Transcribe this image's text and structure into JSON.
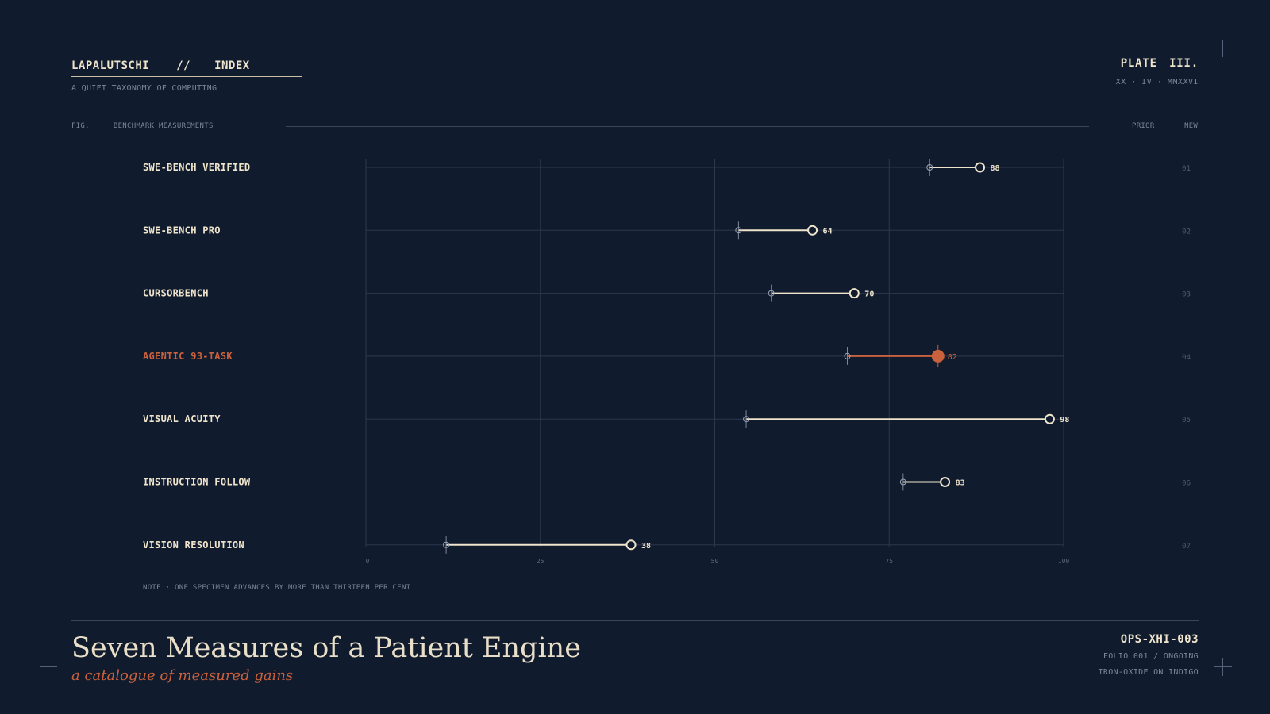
{
  "header": {
    "brand": "LAPALUTSCHI",
    "separator": "//",
    "section": "INDEX",
    "tagline": "A QUIET TAXONOMY OF COMPUTING",
    "plate": "PLATE III.",
    "date": "XX · IV · MMXXVI"
  },
  "figure": {
    "fig_label": "FIG.",
    "caption": "BENCHMARK MEASUREMENTS",
    "prior_label": "PRIOR",
    "new_label": "NEW",
    "note": "NOTE · ONE SPECIMEN ADVANCES BY MORE THAN THIRTEEN PER CENT"
  },
  "footer": {
    "title": "Seven Measures of a Patient Engine",
    "subtitle": "a catalogue of measured gains",
    "code": "OPS-XHI-003",
    "folio": "FOLIO 001 / ONGOING",
    "medium": "IRON-OXIDE ON INDIGO"
  },
  "colors": {
    "background": "#111b2e",
    "text": "#efe4cc",
    "accent": "#c9613c",
    "grid": "#2c384d"
  },
  "chart_data": {
    "type": "dumbbell",
    "xlim": [
      0,
      100
    ],
    "ticks": [
      "0",
      "25",
      "50",
      "75",
      "100"
    ],
    "categories": [
      "SWE-BENCH VERIFIED",
      "SWE-BENCH PRO",
      "CURSORBENCH",
      "AGENTIC 93-TASK",
      "VISUAL ACUITY",
      "INSTRUCTION FOLLOW",
      "VISION RESOLUTION"
    ],
    "indices": [
      "01",
      "02",
      "03",
      "04",
      "05",
      "06",
      "07"
    ],
    "series": [
      {
        "name": "PRIOR",
        "values": [
          80.8,
          53.4,
          58.1,
          69.0,
          54.5,
          77.0,
          11.5
        ]
      },
      {
        "name": "NEW",
        "values": [
          88,
          64,
          70,
          82,
          98,
          83,
          38
        ]
      }
    ],
    "value_labels": [
      "88",
      "64",
      "70",
      "82",
      "98",
      "83",
      "38"
    ],
    "highlight_index": 3,
    "grid": true
  }
}
